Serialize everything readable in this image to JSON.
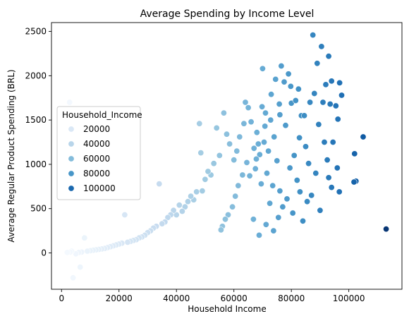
{
  "chart_data": {
    "type": "scatter",
    "title": "Average Spending by Income Level",
    "xlabel": "Household Income",
    "ylabel": "Average Regular Product Spending (BRL)",
    "xlim": [
      -3500,
      118500
    ],
    "ylim": [
      -410,
      2600
    ],
    "xticks": [
      0,
      20000,
      40000,
      60000,
      80000,
      100000
    ],
    "xtick_labels": [
      "0",
      "20000",
      "40000",
      "60000",
      "80000",
      "100000"
    ],
    "yticks": [
      0,
      500,
      1000,
      1500,
      2000,
      2500
    ],
    "ytick_labels": [
      "0",
      "500",
      "1000",
      "1500",
      "2000",
      "2500"
    ],
    "grid": false,
    "hue_variable": "Household_Income",
    "palette": "Blues",
    "hue_range": [
      0,
      114000
    ],
    "legend": {
      "title": "Household_Income",
      "placement": "center-left",
      "entries": [
        {
          "label": "20000",
          "value": 20000
        },
        {
          "label": "40000",
          "value": 40000
        },
        {
          "label": "60000",
          "value": 60000
        },
        {
          "label": "80000",
          "value": 80000
        },
        {
          "label": "100000",
          "value": 100000
        }
      ]
    },
    "points": [
      [
        87500,
        2460
      ],
      [
        90500,
        2330
      ],
      [
        93000,
        2220
      ],
      [
        89000,
        2140
      ],
      [
        94000,
        1940
      ],
      [
        96800,
        1920
      ],
      [
        92000,
        1900
      ],
      [
        97500,
        1780
      ],
      [
        91000,
        1700
      ],
      [
        95500,
        1660
      ],
      [
        93500,
        1680
      ],
      [
        96200,
        1510
      ],
      [
        105000,
        1310
      ],
      [
        94500,
        1250
      ],
      [
        102000,
        1120
      ],
      [
        96000,
        960
      ],
      [
        93000,
        850
      ],
      [
        102500,
        810
      ],
      [
        101800,
        800
      ],
      [
        94000,
        740
      ],
      [
        96700,
        690
      ],
      [
        90000,
        480
      ],
      [
        84000,
        360
      ],
      [
        113000,
        270
      ],
      [
        86000,
        1010
      ],
      [
        85000,
        1200
      ],
      [
        83500,
        1550
      ],
      [
        82500,
        1850
      ],
      [
        80000,
        1690
      ],
      [
        78000,
        1440
      ],
      [
        76000,
        1560
      ],
      [
        74500,
        1960
      ],
      [
        73000,
        1790
      ],
      [
        71000,
        1580
      ],
      [
        70000,
        2080
      ],
      [
        76500,
        2110
      ],
      [
        79000,
        2020
      ],
      [
        77500,
        1930
      ],
      [
        74000,
        1310
      ],
      [
        72000,
        1150
      ],
      [
        75000,
        1040
      ],
      [
        79500,
        960
      ],
      [
        81000,
        1100
      ],
      [
        82000,
        820
      ],
      [
        83000,
        690
      ],
      [
        78500,
        610
      ],
      [
        76000,
        700
      ],
      [
        73500,
        760
      ],
      [
        71500,
        900
      ],
      [
        70500,
        1250
      ],
      [
        69000,
        1110
      ],
      [
        68000,
        1360
      ],
      [
        67000,
        1180
      ],
      [
        66000,
        1480
      ],
      [
        65000,
        1640
      ],
      [
        64000,
        1700
      ],
      [
        63500,
        1460
      ],
      [
        62000,
        1310
      ],
      [
        61000,
        1150
      ],
      [
        60000,
        1050
      ],
      [
        58500,
        1230
      ],
      [
        57500,
        1340
      ],
      [
        56500,
        1580
      ],
      [
        55000,
        1100
      ],
      [
        54000,
        1410
      ],
      [
        53000,
        1010
      ],
      [
        52000,
        880
      ],
      [
        51000,
        920
      ],
      [
        50000,
        830
      ],
      [
        49000,
        700
      ],
      [
        48000,
        1460
      ],
      [
        48500,
        1130
      ],
      [
        47000,
        690
      ],
      [
        46000,
        600
      ],
      [
        45000,
        640
      ],
      [
        44000,
        580
      ],
      [
        43000,
        520
      ],
      [
        42000,
        470
      ],
      [
        41000,
        540
      ],
      [
        40000,
        430
      ],
      [
        39000,
        480
      ],
      [
        38000,
        430
      ],
      [
        37000,
        400
      ],
      [
        36000,
        350
      ],
      [
        35000,
        330
      ],
      [
        34000,
        780
      ],
      [
        33000,
        300
      ],
      [
        32000,
        280
      ],
      [
        31000,
        250
      ],
      [
        30000,
        230
      ],
      [
        29000,
        200
      ],
      [
        28000,
        180
      ],
      [
        27000,
        170
      ],
      [
        26000,
        150
      ],
      [
        25000,
        140
      ],
      [
        24000,
        130
      ],
      [
        23000,
        120
      ],
      [
        22000,
        430
      ],
      [
        21000,
        110
      ],
      [
        20000,
        100
      ],
      [
        19000,
        90
      ],
      [
        18000,
        80
      ],
      [
        17000,
        70
      ],
      [
        16000,
        60
      ],
      [
        15000,
        50
      ],
      [
        14000,
        45
      ],
      [
        13000,
        40
      ],
      [
        12000,
        35
      ],
      [
        11000,
        30
      ],
      [
        10000,
        25
      ],
      [
        9000,
        20
      ],
      [
        8000,
        170
      ],
      [
        7000,
        10
      ],
      [
        6000,
        5
      ],
      [
        5000,
        -10
      ],
      [
        4000,
        -280
      ],
      [
        3500,
        20
      ],
      [
        3000,
        10
      ],
      [
        2000,
        5
      ],
      [
        6500,
        -160
      ],
      [
        2800,
        1700
      ],
      [
        65500,
        870
      ],
      [
        67500,
        950
      ],
      [
        69500,
        780
      ],
      [
        72500,
        560
      ],
      [
        75500,
        400
      ],
      [
        77000,
        520
      ],
      [
        80500,
        450
      ],
      [
        82800,
        1300
      ],
      [
        84500,
        1550
      ],
      [
        86500,
        1700
      ],
      [
        88000,
        1800
      ],
      [
        89500,
        1450
      ],
      [
        91500,
        1250
      ],
      [
        92500,
        1050
      ],
      [
        88500,
        900
      ],
      [
        87000,
        650
      ],
      [
        85500,
        580
      ],
      [
        81500,
        1720
      ],
      [
        79800,
        1880
      ],
      [
        75800,
        1680
      ],
      [
        72800,
        1500
      ],
      [
        70800,
        1430
      ],
      [
        69800,
        1650
      ],
      [
        68500,
        1230
      ],
      [
        67800,
        1060
      ],
      [
        64500,
        1020
      ],
      [
        63000,
        880
      ],
      [
        61500,
        760
      ],
      [
        60500,
        640
      ],
      [
        59500,
        520
      ],
      [
        58000,
        430
      ],
      [
        57000,
        380
      ],
      [
        56000,
        300
      ],
      [
        55500,
        260
      ],
      [
        66800,
        380
      ],
      [
        71200,
        320
      ],
      [
        73800,
        250
      ],
      [
        68800,
        200
      ]
    ]
  }
}
